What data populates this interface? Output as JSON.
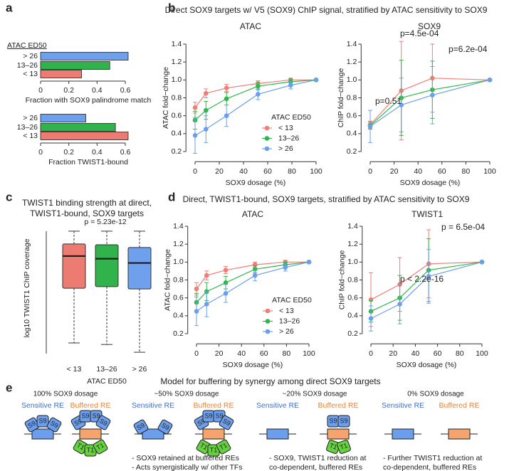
{
  "panel_labels": [
    "a",
    "b",
    "c",
    "d",
    "e"
  ],
  "section_titles": [
    "Direct SOX9 targets w/ V5 (SOX9) ChIP signal, stratified by ATAC sensitivity to SOX9",
    "Direct, TWIST1-bound, SOX9 targets, stratified by ATAC sensitivity to SOX9"
  ],
  "chart_data": [
    {
      "type": "barh",
      "legend_title": "ATAC ED50",
      "categories": [
        "> 26",
        "13–26",
        "< 13"
      ],
      "values": [
        0.62,
        0.49,
        0.29
      ],
      "colors": [
        "#6fa0ee",
        "#2fb34a",
        "#ec7b71"
      ],
      "xlim": [
        0,
        0.68
      ],
      "xticks": [
        0,
        0.2,
        0.4,
        0.6
      ],
      "xlabel": "Fraction with SOX9 palindrome match"
    },
    {
      "type": "barh",
      "categories": [
        "> 26",
        "13–26",
        "< 13"
      ],
      "values": [
        0.32,
        0.53,
        0.62
      ],
      "colors": [
        "#6fa0ee",
        "#2fb34a",
        "#ec7b71"
      ],
      "xlim": [
        0,
        0.68
      ],
      "xticks": [
        0,
        0.2,
        0.4,
        0.6
      ],
      "xlabel": "Fraction TWIST1-bound"
    },
    {
      "type": "line",
      "title": "ATAC",
      "xlabel": "SOX9 dosage (%)",
      "ylabel": "ATAC fold−change",
      "legend_title": "ATAC ED50",
      "x": [
        0,
        9,
        26,
        52,
        79,
        100
      ],
      "xlim": [
        -4,
        104
      ],
      "xticks": [
        0,
        20,
        40,
        60,
        80,
        100
      ],
      "ylim": [
        0.15,
        1.45
      ],
      "yticks": [
        0.2,
        0.4,
        0.6,
        0.8,
        {
          "value": 1,
          "label": "1.0"
        },
        1.2,
        1.4
      ],
      "series": [
        {
          "name": "< 13",
          "color": "#ef7f76",
          "values": [
            0.69,
            0.85,
            0.91,
            0.96,
            1.0,
            1.0
          ],
          "errors": [
            0.06,
            0.05,
            0.04,
            0.03,
            0.02,
            0
          ]
        },
        {
          "name": "13–26",
          "color": "#2fb84a",
          "values": [
            0.55,
            0.66,
            0.79,
            0.93,
            0.98,
            1.0
          ],
          "errors": [
            0.1,
            0.1,
            0.07,
            0.04,
            0.03,
            0
          ]
        },
        {
          "name": "> 26",
          "color": "#6b9fee",
          "values": [
            0.38,
            0.45,
            0.6,
            0.84,
            0.94,
            1.0
          ],
          "errors": [
            0.2,
            0.15,
            0.12,
            0.06,
            0.04,
            0
          ]
        }
      ]
    },
    {
      "type": "line",
      "title": "SOX9",
      "xlabel": "SOX9 dosage (%)",
      "ylabel": "ChIP fold−change",
      "x": [
        0,
        26,
        52,
        100
      ],
      "xlim": [
        -4,
        104
      ],
      "xticks": [
        0,
        20,
        40,
        60,
        80,
        100
      ],
      "ylim": [
        0.15,
        1.45
      ],
      "yticks": [
        0.2,
        0.4,
        0.6,
        0.8,
        {
          "value": 1,
          "label": "1.0"
        },
        1.2,
        1.4
      ],
      "annotations": [
        "p=0.51",
        "p=4.5e-04",
        "p=6.2e-04"
      ],
      "series": [
        {
          "name": "< 13",
          "color": "#ef7f76",
          "values": [
            0.5,
            0.88,
            1.02,
            1.0
          ],
          "errors": [
            0.04,
            0.55,
            0.38,
            0
          ]
        },
        {
          "name": "13–26",
          "color": "#2fb84a",
          "values": [
            0.49,
            0.8,
            0.89,
            1.0
          ],
          "errors": [
            0.04,
            0.42,
            0.32,
            0
          ]
        },
        {
          "name": "> 26",
          "color": "#6b9fee",
          "values": [
            0.48,
            0.72,
            0.83,
            1.0
          ],
          "errors": [
            0.18,
            0.3,
            0.32,
            0
          ]
        }
      ]
    },
    {
      "type": "box",
      "title": [
        "TWIST1 binding strength at direct,",
        "TWIST1-bound, SOX9 targets"
      ],
      "subtitle": "p = 5.23e-12",
      "ylabel": "log10 TWIST1 ChIP coverage",
      "xlabel": "ATAC ED50",
      "categories": [
        "< 13",
        "13–26",
        "> 26"
      ],
      "colors": [
        "#ec7b71",
        "#2fb34a",
        "#6fa0ee"
      ],
      "ylim": [
        -0.3,
        3.0
      ],
      "boxes": [
        {
          "min": 0.03,
          "q1": 1.44,
          "median": 2.27,
          "q3": 2.58,
          "max": 2.91
        },
        {
          "min": -0.01,
          "q1": 1.48,
          "median": 2.2,
          "q3": 2.56,
          "max": 2.91
        },
        {
          "min": -0.21,
          "q1": 1.42,
          "median": 2.09,
          "q3": 2.49,
          "max": 2.91
        }
      ]
    },
    {
      "type": "line",
      "title": "ATAC",
      "xlabel": "SOX9 dosage (%)",
      "ylabel": "ATAC fold−change",
      "legend_title": "ATAC ED50",
      "x": [
        0,
        9,
        26,
        52,
        79,
        100
      ],
      "xlim": [
        -4,
        104
      ],
      "xticks": [
        0,
        20,
        40,
        60,
        80,
        100
      ],
      "ylim": [
        0.15,
        1.45
      ],
      "yticks": [
        0.2,
        0.4,
        0.6,
        0.8,
        {
          "value": 1,
          "label": "1.0"
        },
        1.2,
        1.4
      ],
      "series": [
        {
          "name": "< 13",
          "color": "#ef7f76",
          "values": [
            0.7,
            0.85,
            0.91,
            0.97,
            1.0,
            1.0
          ],
          "errors": [
            0.07,
            0.05,
            0.04,
            0.03,
            0.02,
            0
          ]
        },
        {
          "name": "13–26",
          "color": "#2fb84a",
          "values": [
            0.55,
            0.67,
            0.77,
            0.92,
            0.97,
            1.0
          ],
          "errors": [
            0.1,
            0.1,
            0.07,
            0.04,
            0.03,
            0
          ]
        },
        {
          "name": "> 26",
          "color": "#6b9fee",
          "values": [
            0.45,
            0.53,
            0.65,
            0.85,
            0.94,
            1.0
          ],
          "errors": [
            0.16,
            0.14,
            0.1,
            0.06,
            0.04,
            0
          ]
        }
      ]
    },
    {
      "type": "line",
      "title": "TWIST1",
      "xlabel": "SOX9 dosage (%)",
      "ylabel": "ChIP fold−change",
      "x": [
        0,
        26,
        52,
        100
      ],
      "xlim": [
        -4,
        104
      ],
      "xticks": [
        0,
        20,
        40,
        60,
        80,
        100
      ],
      "ylim": [
        0.15,
        1.45
      ],
      "yticks": [
        0.2,
        0.4,
        0.6,
        0.8,
        {
          "value": 1,
          "label": "1.0"
        },
        1.2,
        1.4
      ],
      "annotations": [
        "p < 2.2e-16",
        "p = 6.5e-04"
      ],
      "series": [
        {
          "name": "< 13",
          "color": "#ef7f76",
          "values": [
            0.58,
            0.75,
            0.98,
            1.0
          ],
          "errors": [
            0.3,
            0.3,
            0.38,
            0
          ]
        },
        {
          "name": "13–26",
          "color": "#2fb84a",
          "values": [
            0.45,
            0.6,
            0.91,
            1.0
          ],
          "errors": [
            0.12,
            0.25,
            0.35,
            0
          ]
        },
        {
          "name": "> 26",
          "color": "#6b9fee",
          "values": [
            0.37,
            0.53,
            0.84,
            1.0
          ],
          "errors": [
            0.14,
            0.22,
            0.3,
            0
          ]
        }
      ]
    }
  ],
  "diagram": {
    "title": "Model for buffering by synergy among direct SOX9 targets",
    "s9": "S9",
    "t1": "T1",
    "columns": [
      {
        "heading": "100% SOX9 dosage",
        "sensitive": "Sensitive RE",
        "buffered": "Buffered RE",
        "notes": []
      },
      {
        "heading": "~50% SOX9 dosage",
        "sensitive": "Sensitive RE",
        "buffered": "Buffered RE",
        "notes": [
          "- SOX9 retained at buffered REs",
          "- Acts synergistically w/ other TFs"
        ]
      },
      {
        "heading": "~20% SOX9 dosage",
        "sensitive": "Sensitive RE",
        "buffered": "Buffered RE",
        "notes": [
          "- SOX9, TWIST1 reduction at",
          "co-dependent, buffered REs"
        ]
      },
      {
        "heading": "0% SOX9 dosage",
        "sensitive": "Sensitive RE",
        "buffered": "Buffered RE",
        "notes": [
          "- Further TWIST1 reduction at",
          "co-dependent, buffered REs"
        ]
      }
    ]
  }
}
